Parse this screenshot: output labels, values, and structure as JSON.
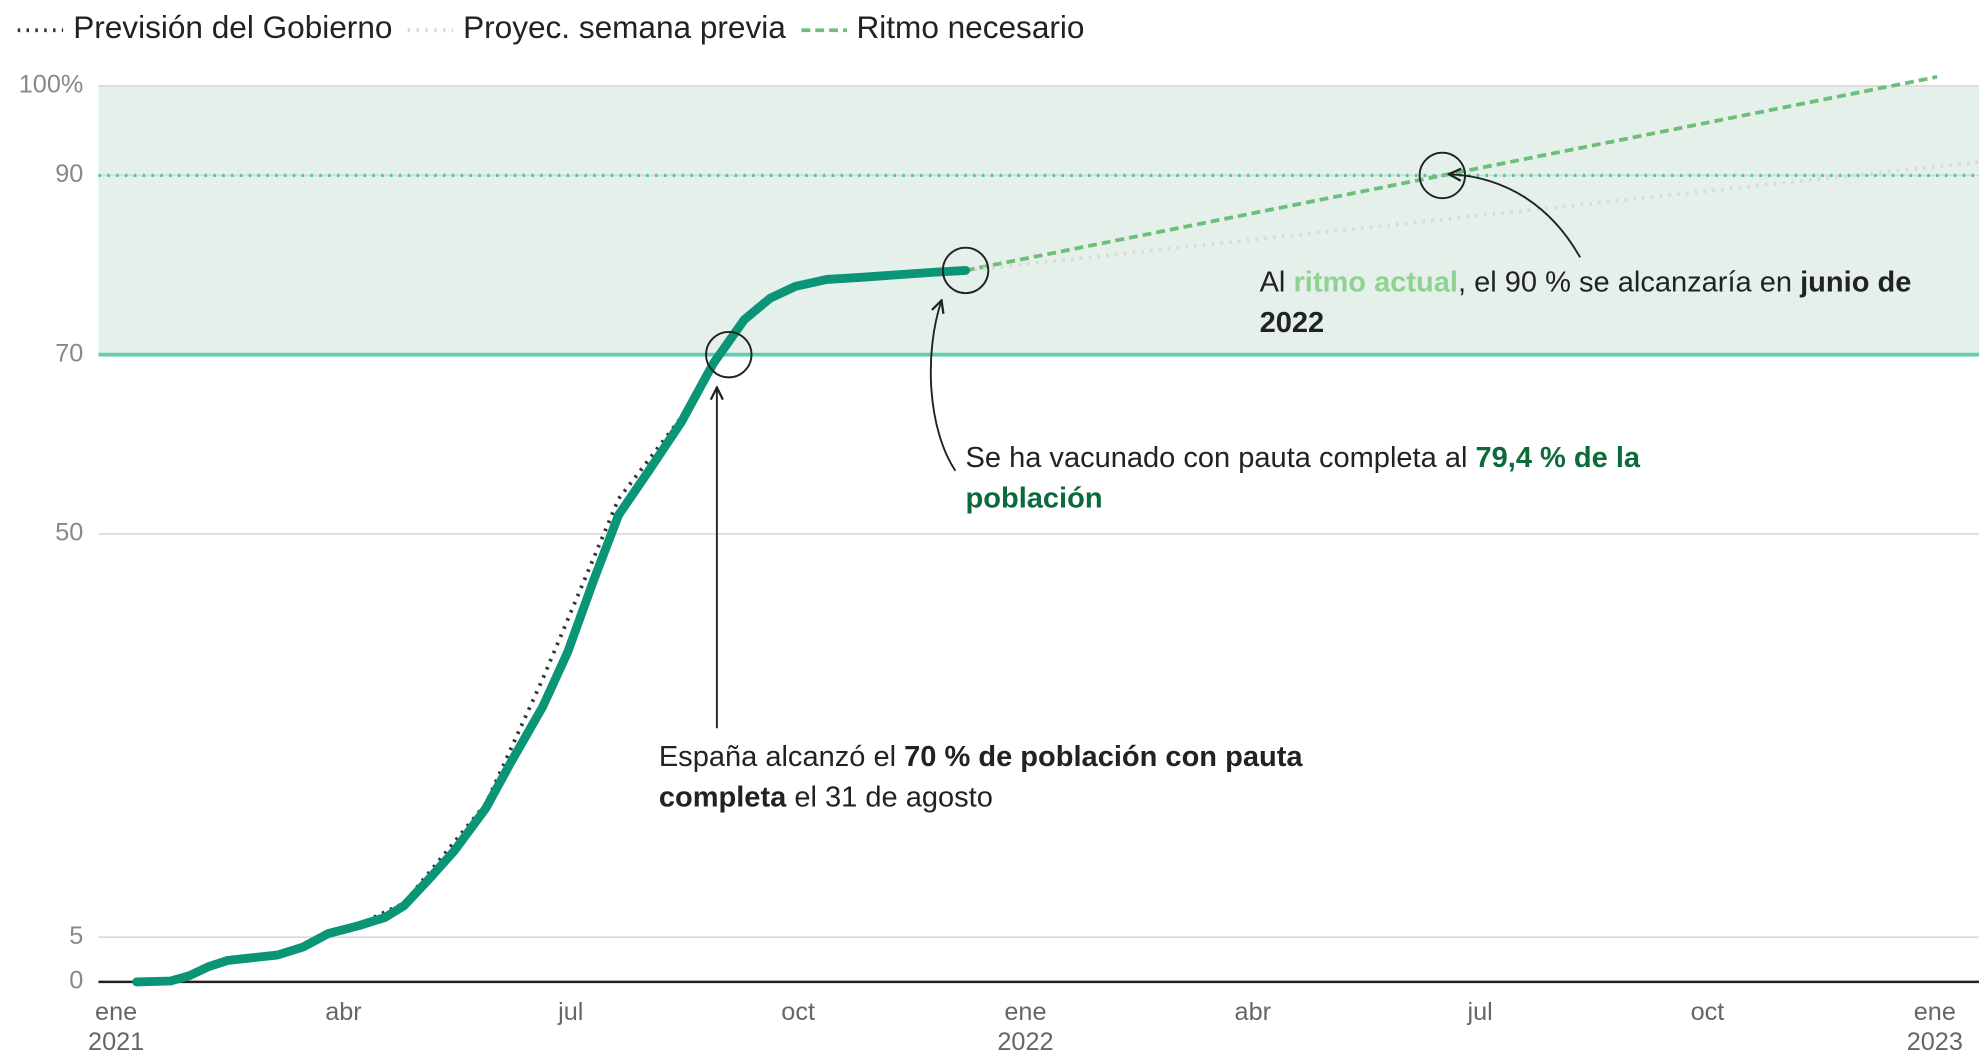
{
  "chart_data": {
    "type": "line",
    "xlim": [
      0,
      24
    ],
    "xticks": [
      {
        "value": 0,
        "label": "ene 2021"
      },
      {
        "value": 3,
        "label": "abr"
      },
      {
        "value": 6,
        "label": "jul"
      },
      {
        "value": 9,
        "label": "oct"
      },
      {
        "value": 12,
        "label": "ene 2022"
      },
      {
        "value": 15,
        "label": "abr"
      },
      {
        "value": 18,
        "label": "jul"
      },
      {
        "value": 21,
        "label": "oct"
      },
      {
        "value": 24,
        "label": "ene 2023"
      }
    ],
    "ylim": [
      0,
      100
    ],
    "yticks": [
      0,
      5,
      50,
      70,
      90,
      {
        "value": 100,
        "label": "100%"
      }
    ],
    "grid": true,
    "target_band": [
      70,
      100
    ],
    "reference_lines": [
      {
        "value": 70,
        "style": "solid",
        "color": "#5fcdb0"
      },
      {
        "value": 90,
        "style": "dotted",
        "color": "#4cc5a6"
      }
    ],
    "legend": "top-left",
    "series": [
      {
        "color": "#0a9676",
        "style": "solid",
        "x": [
          0.27,
          0.72,
          0.97,
          1.22,
          1.47,
          1.8,
          2.13,
          2.47,
          2.8,
          3.21,
          3.55,
          3.8,
          4.13,
          4.46,
          4.88,
          5.21,
          5.63,
          5.96,
          6.3,
          6.63,
          7.05,
          7.46,
          7.88,
          8.29,
          8.63,
          8.96,
          9.38,
          9.79,
          10.29,
          10.79,
          11.21
        ],
        "values": [
          0,
          0.1,
          0.7,
          1.7,
          2.4,
          2.7,
          3.0,
          3.9,
          5.4,
          6.3,
          7.2,
          8.5,
          11.5,
          14.6,
          19.4,
          24.5,
          30.7,
          36.8,
          44.8,
          52.1,
          57.3,
          62.5,
          69.0,
          73.9,
          76.3,
          77.6,
          78.4,
          78.6,
          78.9,
          79.2,
          79.4
        ]
      },
      {
        "name": "Previsión del Gobierno",
        "color": "#333333",
        "style": "dotted",
        "x": [
          3.3,
          3.8,
          4.88,
          5.63,
          6.63,
          7.46,
          7.96
        ],
        "values": [
          6.8,
          8.8,
          19.9,
          33.8,
          53.9,
          63.0,
          70.1
        ]
      },
      {
        "name": "Proyec. semana previa",
        "color": "#d9d9d9",
        "style": "dotted",
        "x": [
          11.21,
          24.58
        ],
        "values": [
          79.4,
          91.5
        ]
      },
      {
        "name": "Ritmo necesario",
        "color": "#6cbf78",
        "style": "dashed",
        "x": [
          11.21,
          24.03
        ],
        "values": [
          79.4,
          101.0
        ]
      }
    ],
    "annotations": [
      {
        "runs": [
          {
            "text": "España alcanzó el "
          },
          {
            "text": "70 % de población con pauta completa",
            "style": "bold"
          },
          {
            "text": " el 31 de agosto"
          }
        ]
      },
      {
        "runs": [
          {
            "text": "Se ha vacunado con pauta completa al "
          },
          {
            "text": "79,4 % de la población",
            "style": "bold",
            "color": "#0b6b3a"
          }
        ]
      },
      {
        "runs": [
          {
            "text": "Al "
          },
          {
            "text": "ritmo actual",
            "style": "bold",
            "color": "#90d293"
          },
          {
            "text": ", el 90 % se alcanzaría en "
          },
          {
            "text": "junio de 2022",
            "style": "bold"
          }
        ]
      }
    ]
  }
}
